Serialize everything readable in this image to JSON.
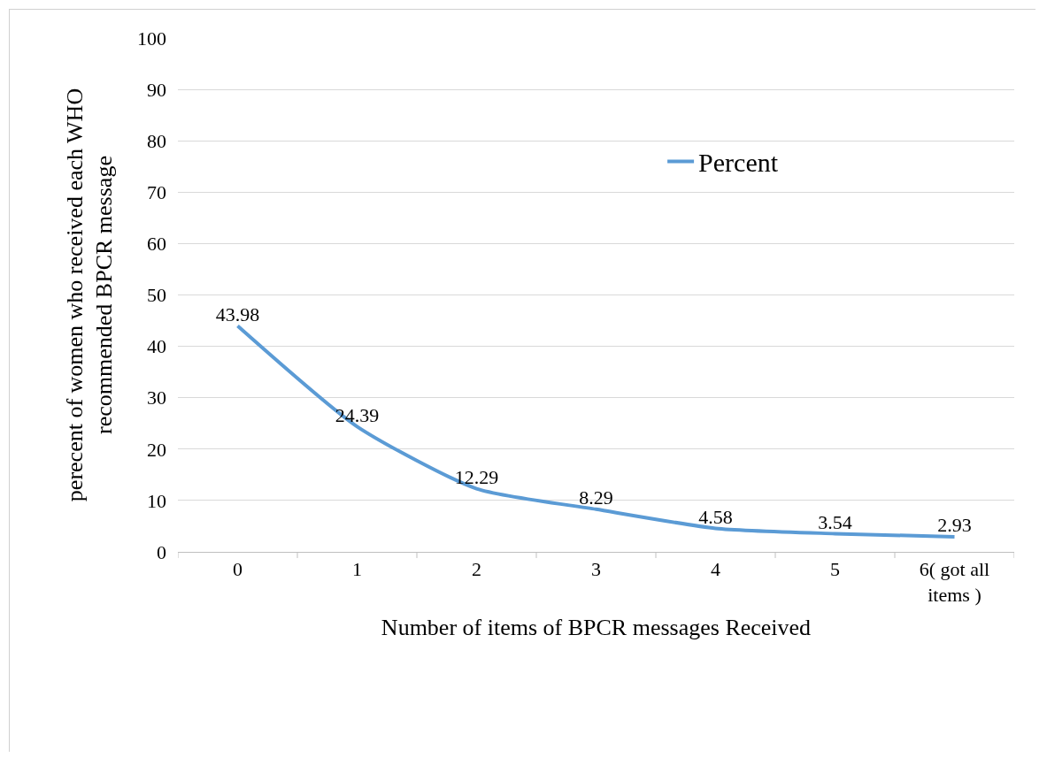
{
  "chart_data": {
    "type": "line",
    "xlabel": "Number of items of BPCR messages Received",
    "ylabel": "perecent of women who received each WHO recommended BPCR message",
    "categories": [
      "0",
      "1",
      "2",
      "3",
      "4",
      "5",
      "6( got all items )"
    ],
    "series": [
      {
        "name": "Percent",
        "color": "#5b9bd5",
        "values": [
          43.98,
          24.39,
          12.29,
          8.29,
          4.58,
          3.54,
          2.93
        ]
      }
    ],
    "ylim": [
      0,
      100
    ],
    "yticks": [
      0,
      10,
      20,
      30,
      40,
      50,
      60,
      70,
      80,
      90,
      100
    ],
    "grid": "y",
    "legend": "top right",
    "data_labels": true,
    "marker": "none",
    "line_style": "solid"
  }
}
